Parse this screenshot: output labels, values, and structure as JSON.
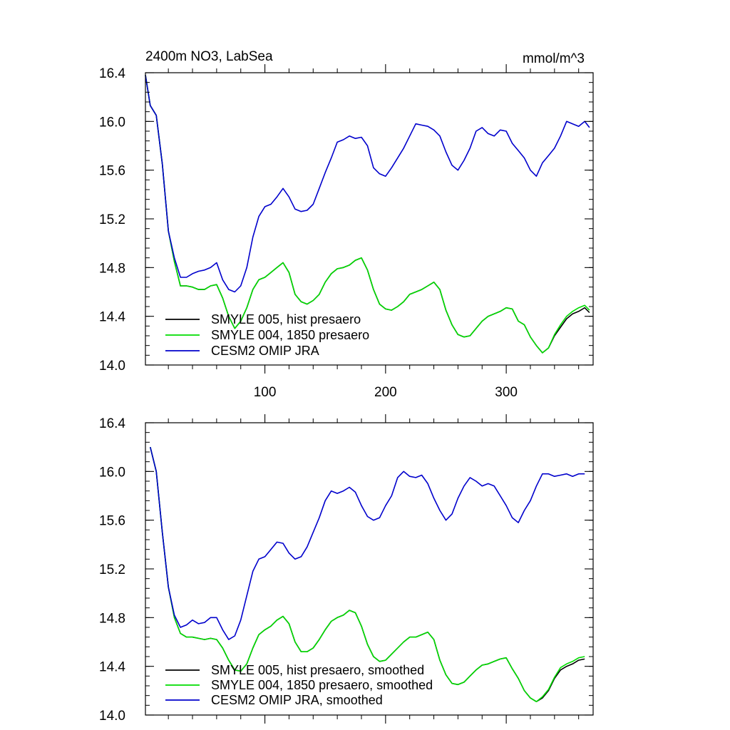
{
  "chart_data": [
    {
      "type": "line",
      "title": "2400m NO3, LabSea",
      "units": "mmol/m^3",
      "xlim": [
        1,
        372
      ],
      "ylim": [
        14.0,
        16.4
      ],
      "xticks": [
        100,
        200,
        300
      ],
      "xtick_labels": [
        "100",
        "200",
        "300"
      ],
      "yticks": [
        14.0,
        14.4,
        14.8,
        15.2,
        15.6,
        16.0,
        16.4
      ],
      "ytick_labels": [
        "14.0",
        "14.4",
        "14.8",
        "15.2",
        "15.6",
        "16.0",
        "16.4"
      ],
      "legend_position": "bottom-left",
      "x": [
        1,
        5,
        10,
        15,
        20,
        25,
        30,
        35,
        40,
        45,
        50,
        55,
        60,
        65,
        70,
        75,
        80,
        85,
        90,
        95,
        100,
        105,
        110,
        115,
        120,
        125,
        130,
        135,
        140,
        145,
        150,
        155,
        160,
        165,
        170,
        175,
        180,
        185,
        190,
        195,
        200,
        205,
        210,
        215,
        220,
        225,
        230,
        235,
        240,
        245,
        250,
        255,
        260,
        265,
        270,
        275,
        280,
        285,
        290,
        295,
        300,
        305,
        310,
        315,
        320,
        325,
        330,
        335,
        340,
        345,
        350,
        355,
        360,
        365,
        369
      ],
      "series": [
        {
          "name": "SMYLE 005, hist presaero",
          "color": "#000000",
          "values": [
            16.38,
            16.13,
            16.05,
            15.65,
            15.1,
            14.85,
            14.65,
            14.65,
            14.64,
            14.62,
            14.62,
            14.65,
            14.66,
            14.55,
            14.4,
            14.3,
            14.36,
            14.47,
            14.62,
            14.7,
            14.72,
            14.76,
            14.8,
            14.84,
            14.76,
            14.58,
            14.52,
            14.5,
            14.53,
            14.58,
            14.68,
            14.75,
            14.79,
            14.8,
            14.82,
            14.86,
            14.88,
            14.78,
            14.62,
            14.5,
            14.46,
            14.45,
            14.48,
            14.52,
            14.58,
            14.6,
            14.62,
            14.65,
            14.68,
            14.62,
            14.45,
            14.33,
            14.25,
            14.23,
            14.24,
            14.3,
            14.36,
            14.4,
            14.42,
            14.44,
            14.47,
            14.46,
            14.36,
            14.33,
            14.23,
            14.16,
            14.1,
            14.14,
            14.24,
            14.31,
            14.38,
            14.42,
            14.44,
            14.47,
            14.43
          ]
        },
        {
          "name": "SMYLE 004, 1850 presaero",
          "color": "#00dd00",
          "values": [
            16.38,
            16.13,
            16.05,
            15.65,
            15.1,
            14.85,
            14.65,
            14.65,
            14.64,
            14.62,
            14.62,
            14.65,
            14.66,
            14.55,
            14.4,
            14.3,
            14.36,
            14.47,
            14.62,
            14.7,
            14.72,
            14.76,
            14.8,
            14.84,
            14.76,
            14.58,
            14.52,
            14.5,
            14.53,
            14.58,
            14.68,
            14.75,
            14.79,
            14.8,
            14.82,
            14.86,
            14.88,
            14.78,
            14.62,
            14.5,
            14.46,
            14.45,
            14.48,
            14.52,
            14.58,
            14.6,
            14.62,
            14.65,
            14.68,
            14.62,
            14.45,
            14.33,
            14.25,
            14.23,
            14.24,
            14.3,
            14.36,
            14.4,
            14.42,
            14.44,
            14.47,
            14.46,
            14.36,
            14.33,
            14.23,
            14.16,
            14.1,
            14.14,
            14.25,
            14.33,
            14.4,
            14.44,
            14.47,
            14.49,
            14.45
          ]
        },
        {
          "name": "CESM2 OMIP JRA",
          "color": "#0000cc",
          "values": [
            16.38,
            16.13,
            16.05,
            15.65,
            15.1,
            14.88,
            14.72,
            14.72,
            14.75,
            14.77,
            14.78,
            14.8,
            14.84,
            14.7,
            14.62,
            14.6,
            14.65,
            14.8,
            15.05,
            15.22,
            15.3,
            15.32,
            15.38,
            15.45,
            15.38,
            15.28,
            15.26,
            15.27,
            15.32,
            15.45,
            15.58,
            15.7,
            15.83,
            15.85,
            15.88,
            15.86,
            15.87,
            15.8,
            15.62,
            15.57,
            15.55,
            15.62,
            15.7,
            15.78,
            15.88,
            15.98,
            15.97,
            15.96,
            15.93,
            15.88,
            15.75,
            15.64,
            15.6,
            15.68,
            15.78,
            15.92,
            15.95,
            15.9,
            15.88,
            15.93,
            15.92,
            15.82,
            15.76,
            15.7,
            15.6,
            15.55,
            15.66,
            15.72,
            15.78,
            15.88,
            16.0,
            15.98,
            15.96,
            16.0,
            15.95
          ]
        }
      ]
    },
    {
      "type": "line",
      "title": "",
      "units": "",
      "xlim": [
        1,
        372
      ],
      "ylim": [
        14.0,
        16.4
      ],
      "xticks": [
        100,
        200,
        300
      ],
      "xtick_labels": [],
      "yticks": [
        14.0,
        14.4,
        14.8,
        15.2,
        15.6,
        16.0,
        16.4
      ],
      "ytick_labels": [
        "14.0",
        "14.4",
        "14.8",
        "15.2",
        "15.6",
        "16.0",
        "16.4"
      ],
      "legend_position": "bottom-left",
      "x": [
        5,
        10,
        15,
        20,
        25,
        30,
        35,
        40,
        45,
        50,
        55,
        60,
        65,
        70,
        75,
        80,
        85,
        90,
        95,
        100,
        105,
        110,
        115,
        120,
        125,
        130,
        135,
        140,
        145,
        150,
        155,
        160,
        165,
        170,
        175,
        180,
        185,
        190,
        195,
        200,
        205,
        210,
        215,
        220,
        225,
        230,
        235,
        240,
        245,
        250,
        255,
        260,
        265,
        270,
        275,
        280,
        285,
        290,
        295,
        300,
        305,
        310,
        315,
        320,
        325,
        330,
        335,
        340,
        345,
        350,
        355,
        360,
        365
      ],
      "series": [
        {
          "name": "SMYLE 005, hist presaero, smoothed",
          "color": "#000000",
          "values": [
            16.2,
            16.0,
            15.5,
            15.05,
            14.8,
            14.67,
            14.64,
            14.64,
            14.63,
            14.62,
            14.63,
            14.62,
            14.55,
            14.45,
            14.37,
            14.36,
            14.42,
            14.55,
            14.66,
            14.7,
            14.73,
            14.78,
            14.81,
            14.75,
            14.6,
            14.52,
            14.52,
            14.55,
            14.62,
            14.7,
            14.77,
            14.8,
            14.82,
            14.86,
            14.84,
            14.73,
            14.58,
            14.48,
            14.44,
            14.45,
            14.5,
            14.55,
            14.6,
            14.64,
            14.64,
            14.66,
            14.68,
            14.62,
            14.45,
            14.33,
            14.26,
            14.25,
            14.27,
            14.32,
            14.37,
            14.41,
            14.42,
            14.44,
            14.46,
            14.47,
            14.38,
            14.3,
            14.2,
            14.14,
            14.11,
            14.14,
            14.2,
            14.3,
            14.37,
            14.4,
            14.42,
            14.45,
            14.46
          ]
        },
        {
          "name": "SMYLE 004, 1850 presaero, smoothed",
          "color": "#00dd00",
          "values": [
            16.2,
            16.0,
            15.5,
            15.05,
            14.8,
            14.67,
            14.64,
            14.64,
            14.63,
            14.62,
            14.63,
            14.62,
            14.55,
            14.45,
            14.37,
            14.36,
            14.42,
            14.55,
            14.66,
            14.7,
            14.73,
            14.78,
            14.81,
            14.75,
            14.6,
            14.52,
            14.52,
            14.55,
            14.62,
            14.7,
            14.77,
            14.8,
            14.82,
            14.86,
            14.84,
            14.73,
            14.58,
            14.48,
            14.44,
            14.45,
            14.5,
            14.55,
            14.6,
            14.64,
            14.64,
            14.66,
            14.68,
            14.62,
            14.45,
            14.33,
            14.26,
            14.25,
            14.27,
            14.32,
            14.37,
            14.41,
            14.42,
            14.44,
            14.46,
            14.47,
            14.38,
            14.3,
            14.2,
            14.14,
            14.11,
            14.15,
            14.21,
            14.31,
            14.39,
            14.42,
            14.44,
            14.47,
            14.48
          ]
        },
        {
          "name": "CESM2 OMIP JRA, smoothed",
          "color": "#0000cc",
          "values": [
            16.2,
            16.0,
            15.5,
            15.05,
            14.82,
            14.72,
            14.74,
            14.78,
            14.75,
            14.76,
            14.8,
            14.8,
            14.7,
            14.62,
            14.65,
            14.78,
            14.98,
            15.18,
            15.28,
            15.3,
            15.36,
            15.42,
            15.41,
            15.33,
            15.28,
            15.3,
            15.38,
            15.5,
            15.62,
            15.76,
            15.84,
            15.82,
            15.84,
            15.87,
            15.83,
            15.72,
            15.63,
            15.6,
            15.62,
            15.72,
            15.8,
            15.95,
            16.0,
            15.96,
            15.95,
            15.97,
            15.9,
            15.78,
            15.68,
            15.6,
            15.65,
            15.78,
            15.88,
            15.95,
            15.92,
            15.88,
            15.9,
            15.88,
            15.8,
            15.72,
            15.62,
            15.58,
            15.68,
            15.76,
            15.88,
            15.98,
            15.98,
            15.96,
            15.97,
            15.98,
            15.96,
            15.98,
            15.98
          ]
        }
      ]
    }
  ]
}
